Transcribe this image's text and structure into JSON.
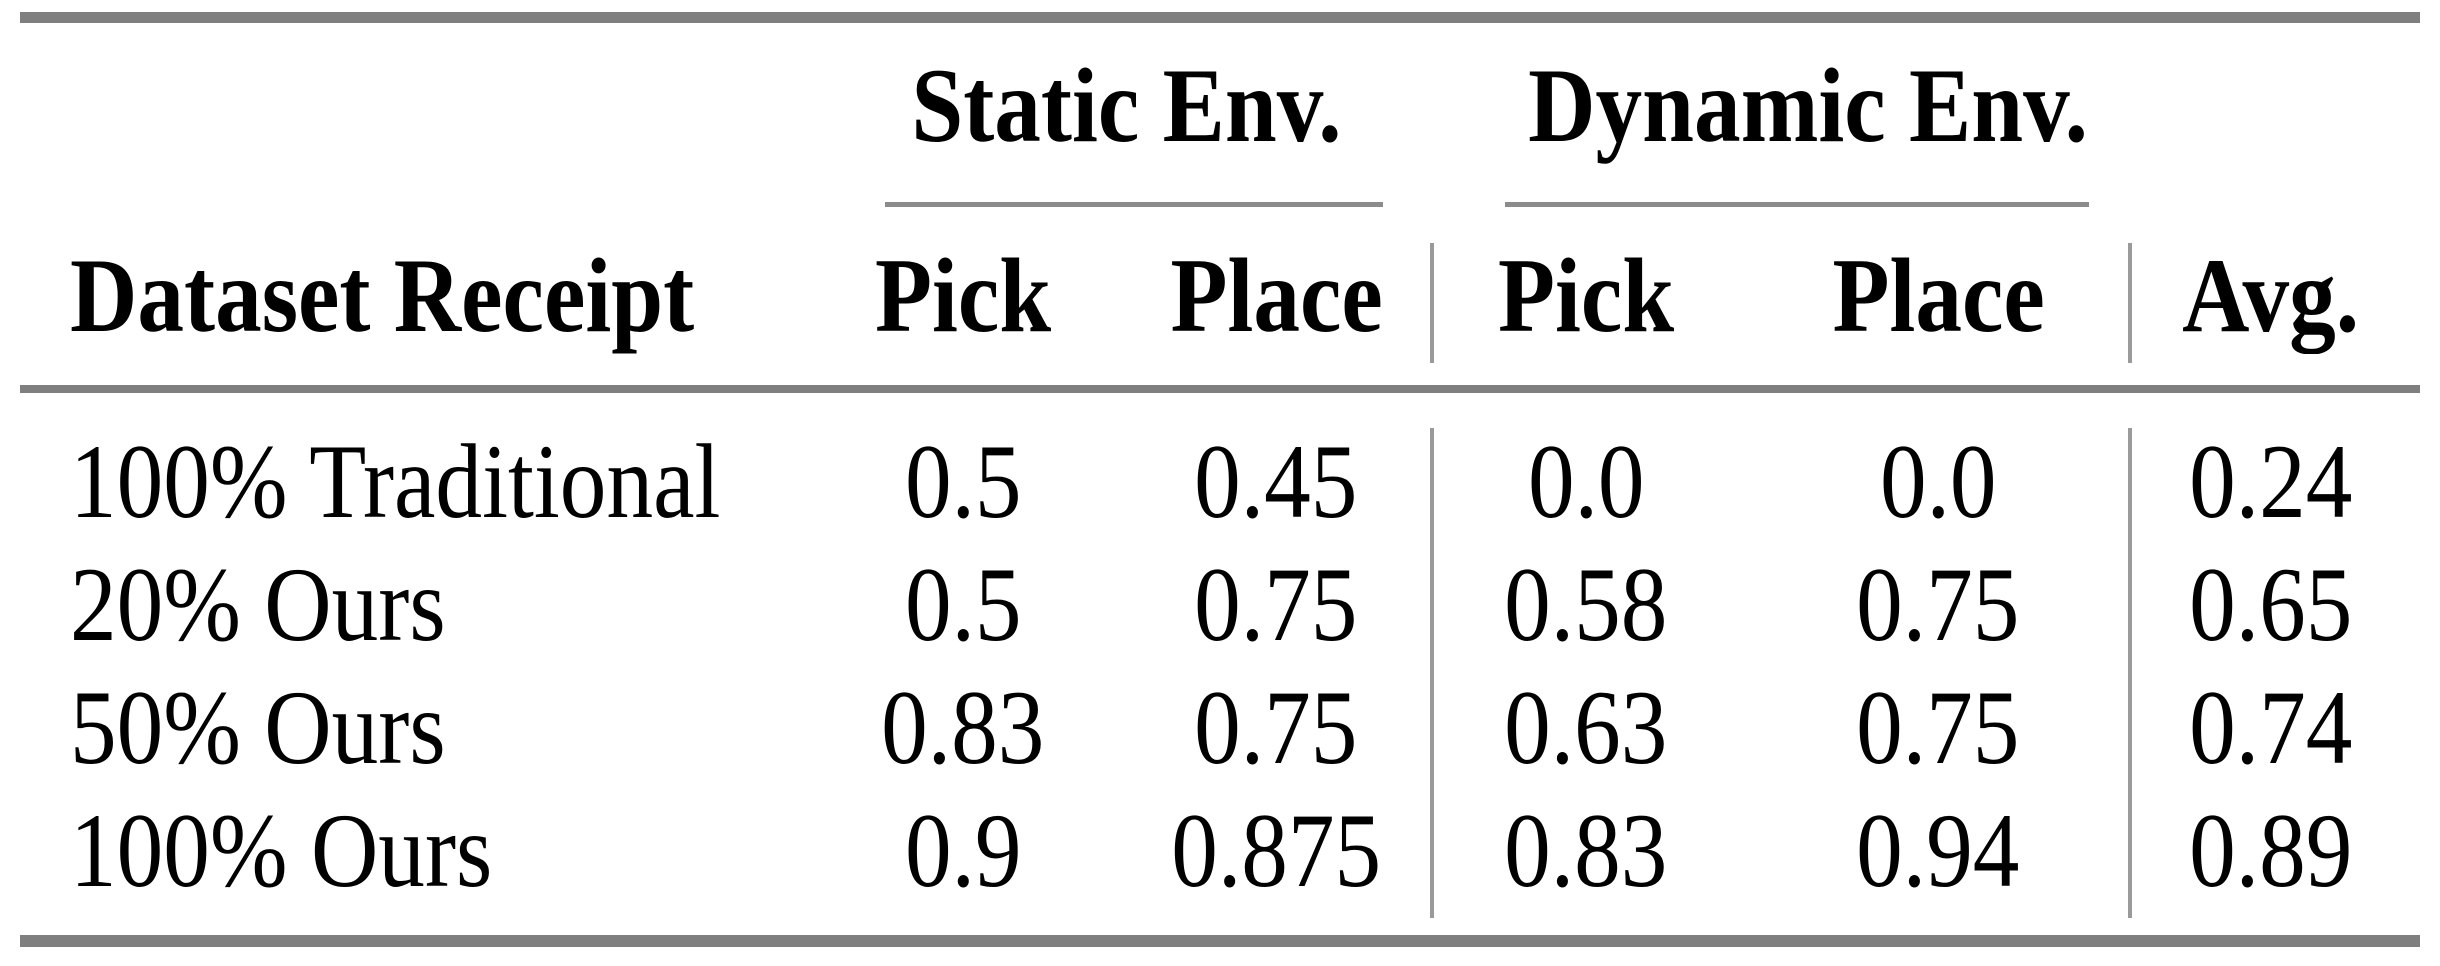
{
  "table": {
    "group_headers": {
      "static": "Static Env.",
      "dynamic": "Dynamic Env."
    },
    "column_headers": {
      "row_label": "Dataset Receipt",
      "static_pick": "Pick",
      "static_place": "Place",
      "dynamic_pick": "Pick",
      "dynamic_place": "Place",
      "avg": "Avg."
    },
    "rows": [
      {
        "label": "100% Traditional",
        "static_pick": "0.5",
        "static_place": "0.45",
        "dynamic_pick": "0.0",
        "dynamic_place": "0.0",
        "avg": "0.24"
      },
      {
        "label": "20% Ours",
        "static_pick": "0.5",
        "static_place": "0.75",
        "dynamic_pick": "0.58",
        "dynamic_place": "0.75",
        "avg": "0.65"
      },
      {
        "label": "50% Ours",
        "static_pick": "0.83",
        "static_place": "0.75",
        "dynamic_pick": "0.63",
        "dynamic_place": "0.75",
        "avg": "0.74"
      },
      {
        "label": "100% Ours",
        "static_pick": "0.9",
        "static_place": "0.875",
        "dynamic_pick": "0.83",
        "dynamic_place": "0.94",
        "avg": "0.89"
      }
    ],
    "colors": {
      "heavy_rule": "#7f7f7f",
      "light_rule": "#8c8c8c",
      "vertical_separator": "#9a9a9a",
      "text": "#000000",
      "background": "#ffffff"
    }
  }
}
